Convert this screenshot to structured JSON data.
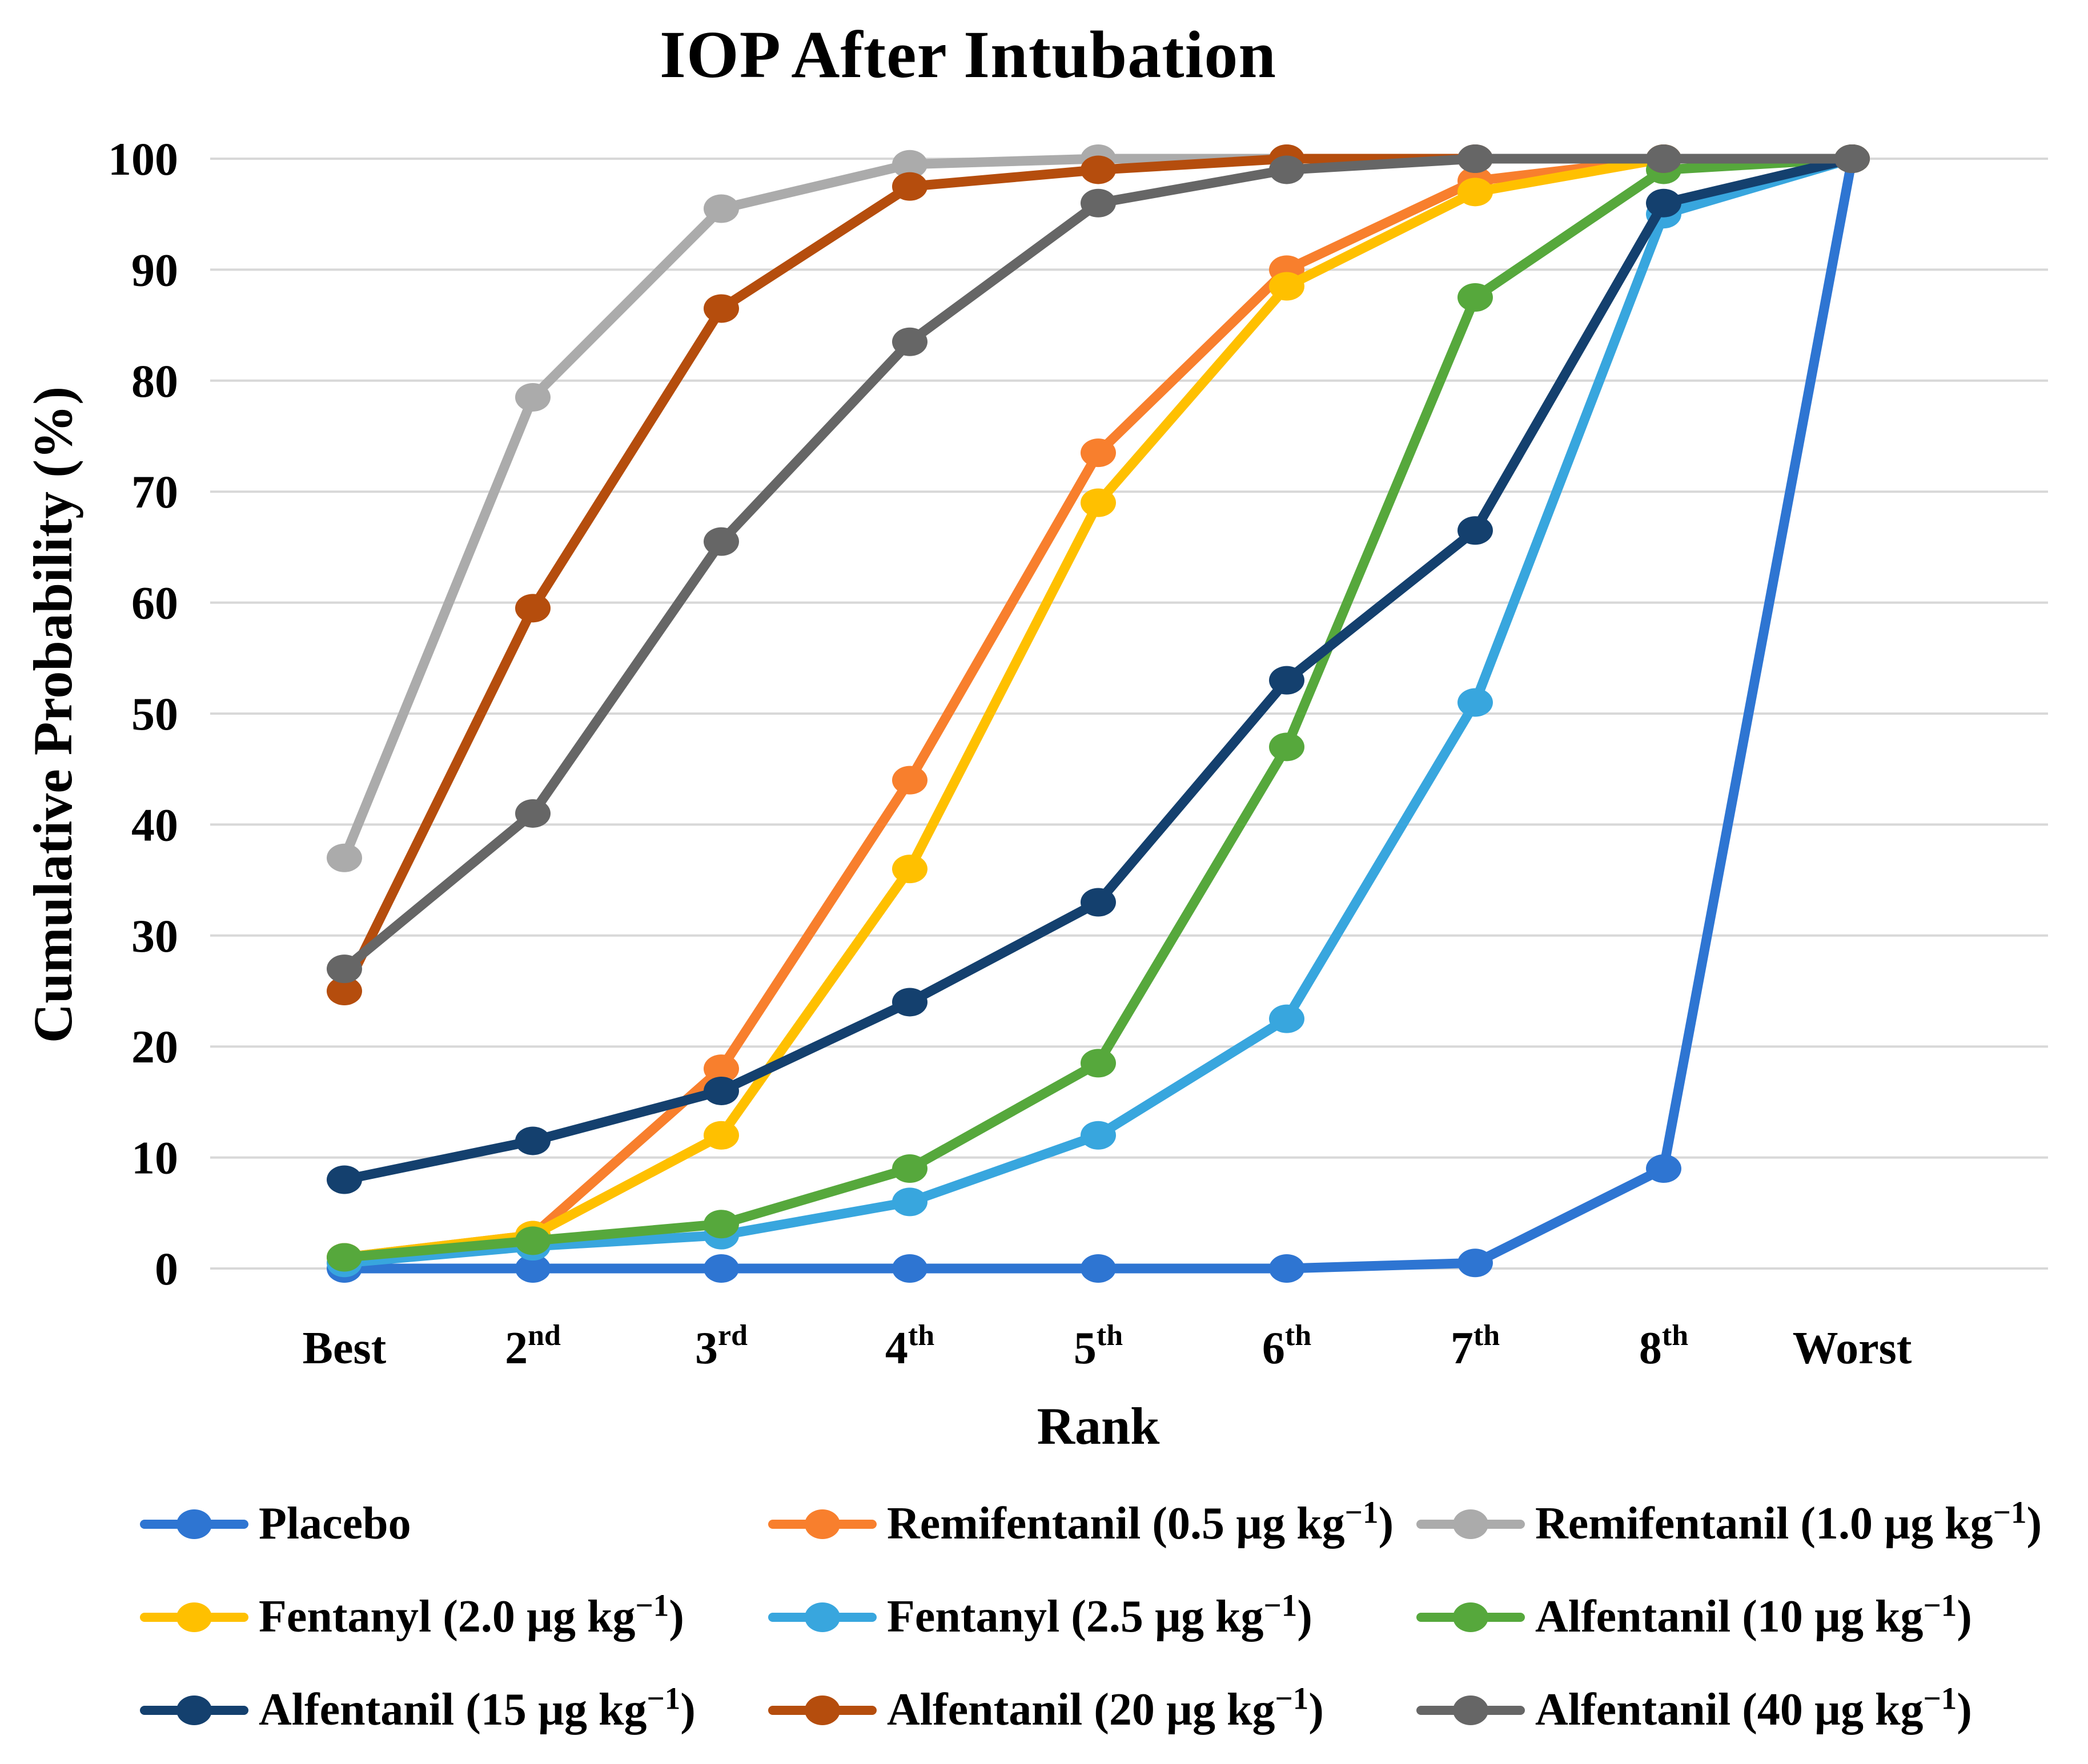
{
  "title": "IOP After Intubation",
  "axes": {
    "y_label": "Cumulative Probability (%)",
    "x_label": "Rank",
    "y_ticks": [
      0,
      10,
      20,
      30,
      40,
      50,
      60,
      70,
      80,
      90,
      100
    ],
    "x_categories_rich": [
      {
        "base": "Best",
        "sup": ""
      },
      {
        "base": "2",
        "sup": "nd"
      },
      {
        "base": "3",
        "sup": "rd"
      },
      {
        "base": "4",
        "sup": "th"
      },
      {
        "base": "5",
        "sup": "th"
      },
      {
        "base": "6",
        "sup": "th"
      },
      {
        "base": "7",
        "sup": "th"
      },
      {
        "base": "8",
        "sup": "th"
      },
      {
        "base": "Worst",
        "sup": ""
      }
    ]
  },
  "colors": {
    "gridline": "#D8D8D8",
    "text": "#000000",
    "background": "#FFFFFF"
  },
  "chart_data": {
    "type": "line",
    "title": "IOP After Intubation",
    "xlabel": "Rank",
    "ylabel": "Cumulative Probability (%)",
    "ylim": [
      0,
      100
    ],
    "grid": true,
    "legend_position": "bottom",
    "categories": [
      "Best",
      "2nd",
      "3rd",
      "4th",
      "5th",
      "6th",
      "7th",
      "8th",
      "Worst"
    ],
    "series": [
      {
        "name": "Placebo",
        "color": "#2E75D2",
        "values": [
          0,
          0,
          0,
          0,
          0,
          0,
          0.5,
          9,
          100
        ]
      },
      {
        "name": "Remifentanil (0.5 µg kg⁻¹)",
        "color": "#F87F2D",
        "values": [
          1,
          3,
          18,
          44,
          73.5,
          90,
          98,
          100,
          100
        ]
      },
      {
        "name": "Remifentanil (1.0 µg kg⁻¹)",
        "color": "#ABABAB",
        "values": [
          37,
          78.5,
          95.5,
          99.5,
          100,
          100,
          100,
          100,
          100
        ]
      },
      {
        "name": "Fentanyl (2.0 µg kg⁻¹)",
        "color": "#FFC000",
        "values": [
          1,
          3,
          12,
          36,
          69,
          88.5,
          97,
          100,
          100
        ]
      },
      {
        "name": "Fentanyl (2.5 µg kg⁻¹)",
        "color": "#38A6DE",
        "values": [
          0.5,
          2,
          3,
          6,
          12,
          22.5,
          51,
          95,
          100
        ]
      },
      {
        "name": "Alfentanil (10 µg kg⁻¹)",
        "color": "#56A83C",
        "values": [
          1,
          2.5,
          4,
          9,
          18.5,
          47,
          87.5,
          99,
          100
        ]
      },
      {
        "name": "Alfentanil (15 µg kg⁻¹)",
        "color": "#14406E",
        "values": [
          8,
          11.5,
          16,
          24,
          33,
          53,
          66.5,
          96,
          100
        ]
      },
      {
        "name": "Alfentanil (20 µg kg⁻¹)",
        "color": "#B54D0D",
        "values": [
          25,
          59.5,
          86.5,
          97.5,
          99,
          100,
          100,
          100,
          100
        ]
      },
      {
        "name": "Alfentanil (40 µg kg⁻¹)",
        "color": "#666666",
        "values": [
          27,
          41,
          65.5,
          83.5,
          96,
          99,
          100,
          100,
          100
        ]
      }
    ]
  },
  "legend": {
    "items": [
      {
        "series": 0,
        "main": "Placebo",
        "sup": "",
        "end": ""
      },
      {
        "series": 1,
        "main": "Remifentanil (0.5 µg kg",
        "sup": "−1",
        "end": ")"
      },
      {
        "series": 2,
        "main": "Remifentanil (1.0 µg kg",
        "sup": "−1",
        "end": ")"
      },
      {
        "series": 3,
        "main": "Fentanyl (2.0 µg kg",
        "sup": "−1",
        "end": ")"
      },
      {
        "series": 4,
        "main": "Fentanyl (2.5 µg kg",
        "sup": "−1",
        "end": ")"
      },
      {
        "series": 5,
        "main": "Alfentanil (10 µg kg",
        "sup": "−1",
        "end": ")"
      },
      {
        "series": 6,
        "main": "Alfentanil (15 µg kg",
        "sup": "−1",
        "end": ")"
      },
      {
        "series": 7,
        "main": "Alfentanil (20 µg kg",
        "sup": "−1",
        "end": ")"
      },
      {
        "series": 8,
        "main": "Alfentanil (40 µg kg",
        "sup": "−1",
        "end": ")"
      }
    ]
  }
}
